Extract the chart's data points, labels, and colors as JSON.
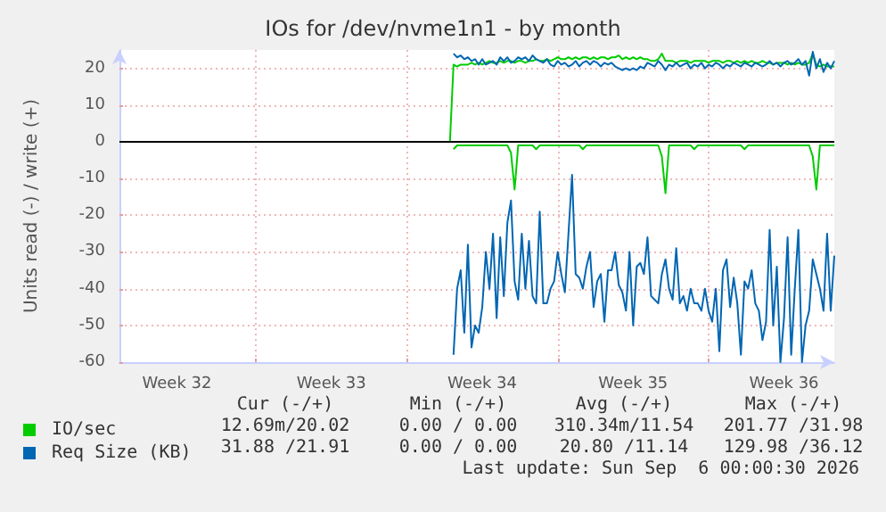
{
  "chart_data": {
    "type": "line",
    "title": "IOs for /dev/nvme1n1 - by month",
    "ylabel": "Units read (-) / write (+)",
    "categories": [
      null,
      null,
      null,
      null,
      null,
      null,
      null,
      null,
      null,
      null,
      null,
      null,
      null,
      null,
      null,
      null,
      "Week 32",
      null,
      null,
      null,
      null,
      null,
      null,
      null,
      null,
      null,
      null,
      null,
      null,
      null,
      null,
      null,
      null,
      null,
      null,
      null,
      null,
      null,
      null,
      null,
      null,
      null,
      null,
      null,
      null,
      null,
      null,
      null,
      null,
      null,
      null,
      null,
      null,
      null,
      null,
      null,
      null,
      null,
      null,
      "Week 33",
      null,
      null,
      null,
      null,
      null,
      null,
      null,
      null,
      null,
      null,
      null,
      null,
      null,
      null,
      null,
      null,
      null,
      null,
      null,
      null,
      null,
      null,
      null,
      null,
      null,
      null,
      null,
      null,
      null,
      null,
      null,
      null,
      null,
      null,
      null,
      null,
      null,
      null,
      null,
      null,
      null,
      "Week 34",
      null,
      null,
      null,
      null,
      null,
      null,
      null,
      null,
      null,
      null,
      null,
      null,
      null,
      null,
      null,
      null,
      null,
      null,
      null,
      null,
      null,
      null,
      null,
      null,
      null,
      null,
      null,
      null,
      null,
      null,
      null,
      null,
      null,
      null,
      null,
      null,
      null,
      null,
      null,
      null,
      null,
      "Week 35",
      null,
      null,
      null,
      null,
      null,
      null,
      null,
      null,
      null,
      null,
      null,
      null,
      null,
      null,
      null,
      null,
      null,
      null,
      null,
      null,
      null,
      null,
      null,
      null,
      null,
      null,
      null,
      null,
      null,
      null,
      null,
      null,
      null,
      null,
      null,
      null,
      null,
      null,
      null,
      null,
      null,
      "Week 36",
      null,
      null,
      null,
      null,
      null,
      null,
      null,
      null,
      null,
      null,
      null,
      null,
      null,
      null
    ],
    "ylim": [
      -60,
      25
    ],
    "yticks": [
      -60,
      -50,
      -40,
      -30,
      -20,
      -10,
      0,
      10,
      20
    ],
    "grid": true,
    "legend": "bottom left",
    "marker": "none",
    "ref_lines": [
      {
        "axis": "y",
        "value": 0,
        "color": "#000000"
      }
    ],
    "series": [
      {
        "color": "#00cc00",
        "values": [
          null,
          null,
          null,
          null,
          null,
          null,
          null,
          null,
          null,
          null,
          null,
          null,
          null,
          null,
          null,
          null,
          null,
          null,
          null,
          null,
          null,
          null,
          null,
          null,
          null,
          null,
          null,
          null,
          null,
          null,
          null,
          null,
          null,
          null,
          null,
          null,
          null,
          null,
          null,
          null,
          null,
          null,
          null,
          null,
          null,
          null,
          null,
          null,
          null,
          null,
          null,
          null,
          null,
          null,
          null,
          null,
          null,
          null,
          null,
          null,
          null,
          null,
          null,
          null,
          null,
          null,
          null,
          null,
          null,
          null,
          null,
          null,
          null,
          null,
          null,
          null,
          null,
          null,
          null,
          null,
          null,
          null,
          null,
          null,
          null,
          null,
          null,
          null,
          null,
          null,
          null,
          null,
          null,
          -2,
          -1,
          -1,
          -1,
          -1,
          -1,
          -1,
          -1,
          -1,
          -1,
          -1,
          -1,
          -1,
          -1,
          -1,
          -1,
          -3,
          -13,
          -1,
          -1,
          -1,
          -1,
          -1,
          -2,
          -1,
          -1,
          -1,
          -1,
          -1,
          -1,
          -1,
          -1,
          -1,
          -1,
          -1,
          -1,
          -2,
          -1,
          -1,
          -1,
          -1,
          -1,
          -1,
          -1,
          -1,
          -1,
          -1,
          -1,
          -1,
          -1,
          -1,
          -1,
          -1,
          -1,
          -1,
          -1,
          -1,
          -1,
          -4,
          -14,
          -1,
          -1,
          -1,
          -1,
          -1,
          -1,
          -1,
          -2,
          -1,
          -1,
          -1,
          -1,
          -1,
          -1,
          -1,
          -1,
          -1,
          -1,
          -1,
          -1,
          -1,
          -2,
          -1,
          -1,
          -1,
          -1,
          -1,
          -1,
          -1,
          -1,
          -1,
          -1,
          -1,
          -1,
          -1,
          -1,
          -1,
          -1,
          -1,
          -1,
          -4,
          -13,
          -1,
          -1,
          -1,
          -1,
          -1
        ]
      },
      {
        "color": "#0066b3",
        "values": [
          null,
          null,
          null,
          null,
          null,
          null,
          null,
          null,
          null,
          null,
          null,
          null,
          null,
          null,
          null,
          null,
          null,
          null,
          null,
          null,
          null,
          null,
          null,
          null,
          null,
          null,
          null,
          null,
          null,
          null,
          null,
          null,
          null,
          null,
          null,
          null,
          null,
          null,
          null,
          null,
          null,
          null,
          null,
          null,
          null,
          null,
          null,
          null,
          null,
          null,
          null,
          null,
          null,
          null,
          null,
          null,
          null,
          null,
          null,
          null,
          null,
          null,
          null,
          null,
          null,
          null,
          null,
          null,
          null,
          null,
          null,
          null,
          null,
          null,
          null,
          null,
          null,
          null,
          null,
          null,
          null,
          null,
          null,
          null,
          null,
          null,
          null,
          null,
          null,
          null,
          null,
          null,
          null,
          -58,
          -40,
          -35,
          -52,
          -28,
          -56,
          -50,
          -52,
          -45,
          -30,
          -40,
          -25,
          -48,
          -26,
          -42,
          -22,
          -16,
          -38,
          -43,
          -25,
          -40,
          -27,
          -42,
          -44,
          -19,
          -44,
          -44,
          -40,
          -38,
          -30,
          -36,
          -41,
          -25,
          -9,
          -36,
          -37,
          -40,
          -34,
          -30,
          -45,
          -38,
          -36,
          -49,
          -35,
          -35,
          -30,
          -39,
          -41,
          -46,
          -30,
          -50,
          -34,
          -33,
          -36,
          -26,
          -42,
          -43,
          -44,
          -36,
          -32,
          -40,
          -43,
          -29,
          -44,
          -42,
          -46,
          -40,
          -44,
          -44,
          -46,
          -40,
          -46,
          -49,
          -40,
          -57,
          -35,
          -32,
          -45,
          -37,
          -44,
          -58,
          -38,
          -40,
          -35,
          -44,
          -46,
          -54,
          -49,
          -24,
          -50,
          -34,
          -60,
          -48,
          -26,
          -58,
          -40,
          -24,
          -60,
          -50,
          -46,
          -32,
          -36,
          -40,
          -46,
          -25,
          -46,
          -31
        ]
      },
      {
        "name": "IO/sec",
        "color": "#00cc00",
        "values": [
          null,
          null,
          null,
          null,
          null,
          null,
          null,
          null,
          null,
          null,
          null,
          null,
          null,
          null,
          null,
          null,
          null,
          null,
          null,
          null,
          null,
          null,
          null,
          null,
          null,
          null,
          null,
          null,
          null,
          null,
          null,
          null,
          null,
          null,
          null,
          null,
          null,
          null,
          null,
          null,
          null,
          null,
          null,
          null,
          null,
          null,
          null,
          null,
          null,
          null,
          null,
          null,
          null,
          null,
          null,
          null,
          null,
          null,
          null,
          null,
          null,
          null,
          null,
          null,
          null,
          null,
          null,
          null,
          null,
          null,
          null,
          null,
          null,
          null,
          null,
          null,
          null,
          null,
          null,
          null,
          null,
          null,
          null,
          null,
          null,
          null,
          null,
          null,
          null,
          null,
          null,
          null,
          0,
          21,
          20.5,
          21,
          21,
          21,
          21.5,
          21,
          21.5,
          21,
          21.5,
          22,
          21.5,
          21.5,
          22,
          21.5,
          22,
          22,
          21.5,
          22,
          22,
          21.5,
          22,
          22,
          22.5,
          22,
          22,
          22.5,
          22,
          22.5,
          23,
          22.5,
          22.5,
          23,
          22.5,
          23,
          22.5,
          23,
          23,
          22.5,
          23,
          22.5,
          23,
          23,
          22.5,
          23,
          23,
          23.5,
          22.5,
          23,
          22.5,
          23,
          22.5,
          23,
          22.5,
          22.5,
          22,
          22,
          22.5,
          24,
          22,
          22,
          22,
          21.5,
          22,
          22,
          22,
          21.5,
          22,
          22,
          22,
          22,
          21.5,
          22,
          22,
          22,
          21.5,
          22,
          22,
          21.5,
          22,
          21.5,
          22,
          21.5,
          22,
          21.5,
          21.5,
          22,
          21.5,
          21.5,
          21,
          21.5,
          21.5,
          21.5,
          21,
          21.5,
          21,
          21.5,
          21,
          21,
          21.5,
          24,
          21,
          20.5,
          21,
          20.5,
          20.5,
          20.5
        ]
      },
      {
        "name": "Req Size (KB)",
        "color": "#0066b3",
        "values": [
          null,
          null,
          null,
          null,
          null,
          null,
          null,
          null,
          null,
          null,
          null,
          null,
          null,
          null,
          null,
          null,
          null,
          null,
          null,
          null,
          null,
          null,
          null,
          null,
          null,
          null,
          null,
          null,
          null,
          null,
          null,
          null,
          null,
          null,
          null,
          null,
          null,
          null,
          null,
          null,
          null,
          null,
          null,
          null,
          null,
          null,
          null,
          null,
          null,
          null,
          null,
          null,
          null,
          null,
          null,
          null,
          null,
          null,
          null,
          null,
          null,
          null,
          null,
          null,
          null,
          null,
          null,
          null,
          null,
          null,
          null,
          null,
          null,
          null,
          null,
          null,
          null,
          null,
          null,
          null,
          null,
          null,
          null,
          null,
          null,
          null,
          null,
          null,
          null,
          null,
          null,
          null,
          null,
          24,
          23,
          23.5,
          22.5,
          23,
          22,
          22.5,
          21,
          22.5,
          21,
          21.5,
          22,
          21,
          23,
          22,
          23,
          21.5,
          22,
          23,
          22.5,
          23,
          22,
          23.5,
          22.5,
          22,
          21.5,
          22.5,
          21,
          20.5,
          22,
          21,
          21.5,
          20.5,
          21,
          22,
          20.5,
          21.5,
          22,
          21,
          22,
          21.5,
          20.5,
          21.5,
          21,
          21.5,
          20.5,
          20,
          19.5,
          20,
          19.5,
          20,
          19.5,
          20.5,
          20,
          21.5,
          21,
          20.5,
          22,
          21,
          19.5,
          21,
          20.5,
          21.5,
          20.5,
          21,
          21.5,
          20,
          21,
          20.5,
          21.5,
          20,
          21,
          20.5,
          21.5,
          21,
          20,
          21,
          20.5,
          21.5,
          21,
          20.5,
          21.5,
          21,
          20.5,
          21.5,
          21,
          20.5,
          21,
          22,
          21,
          21.5,
          20.5,
          21.5,
          22,
          21,
          21.5,
          22.5,
          21,
          22,
          18,
          24.5,
          20,
          22.5,
          19,
          21.5,
          20,
          22
        ]
      }
    ],
    "annotations": [
      "Cur (-/+)",
      "Min (-/+)",
      "Avg (-/+)",
      "Max (-/+)",
      "12.69m/20.02",
      "0.00 / 0.00",
      "310.34m/11.54",
      "201.77 /31.98",
      "31.88 /21.91",
      "0.00 / 0.00",
      "20.80 /11.14",
      "129.98 /36.12",
      "Last update: Sun Sep  6 00:00:30 2026"
    ]
  }
}
